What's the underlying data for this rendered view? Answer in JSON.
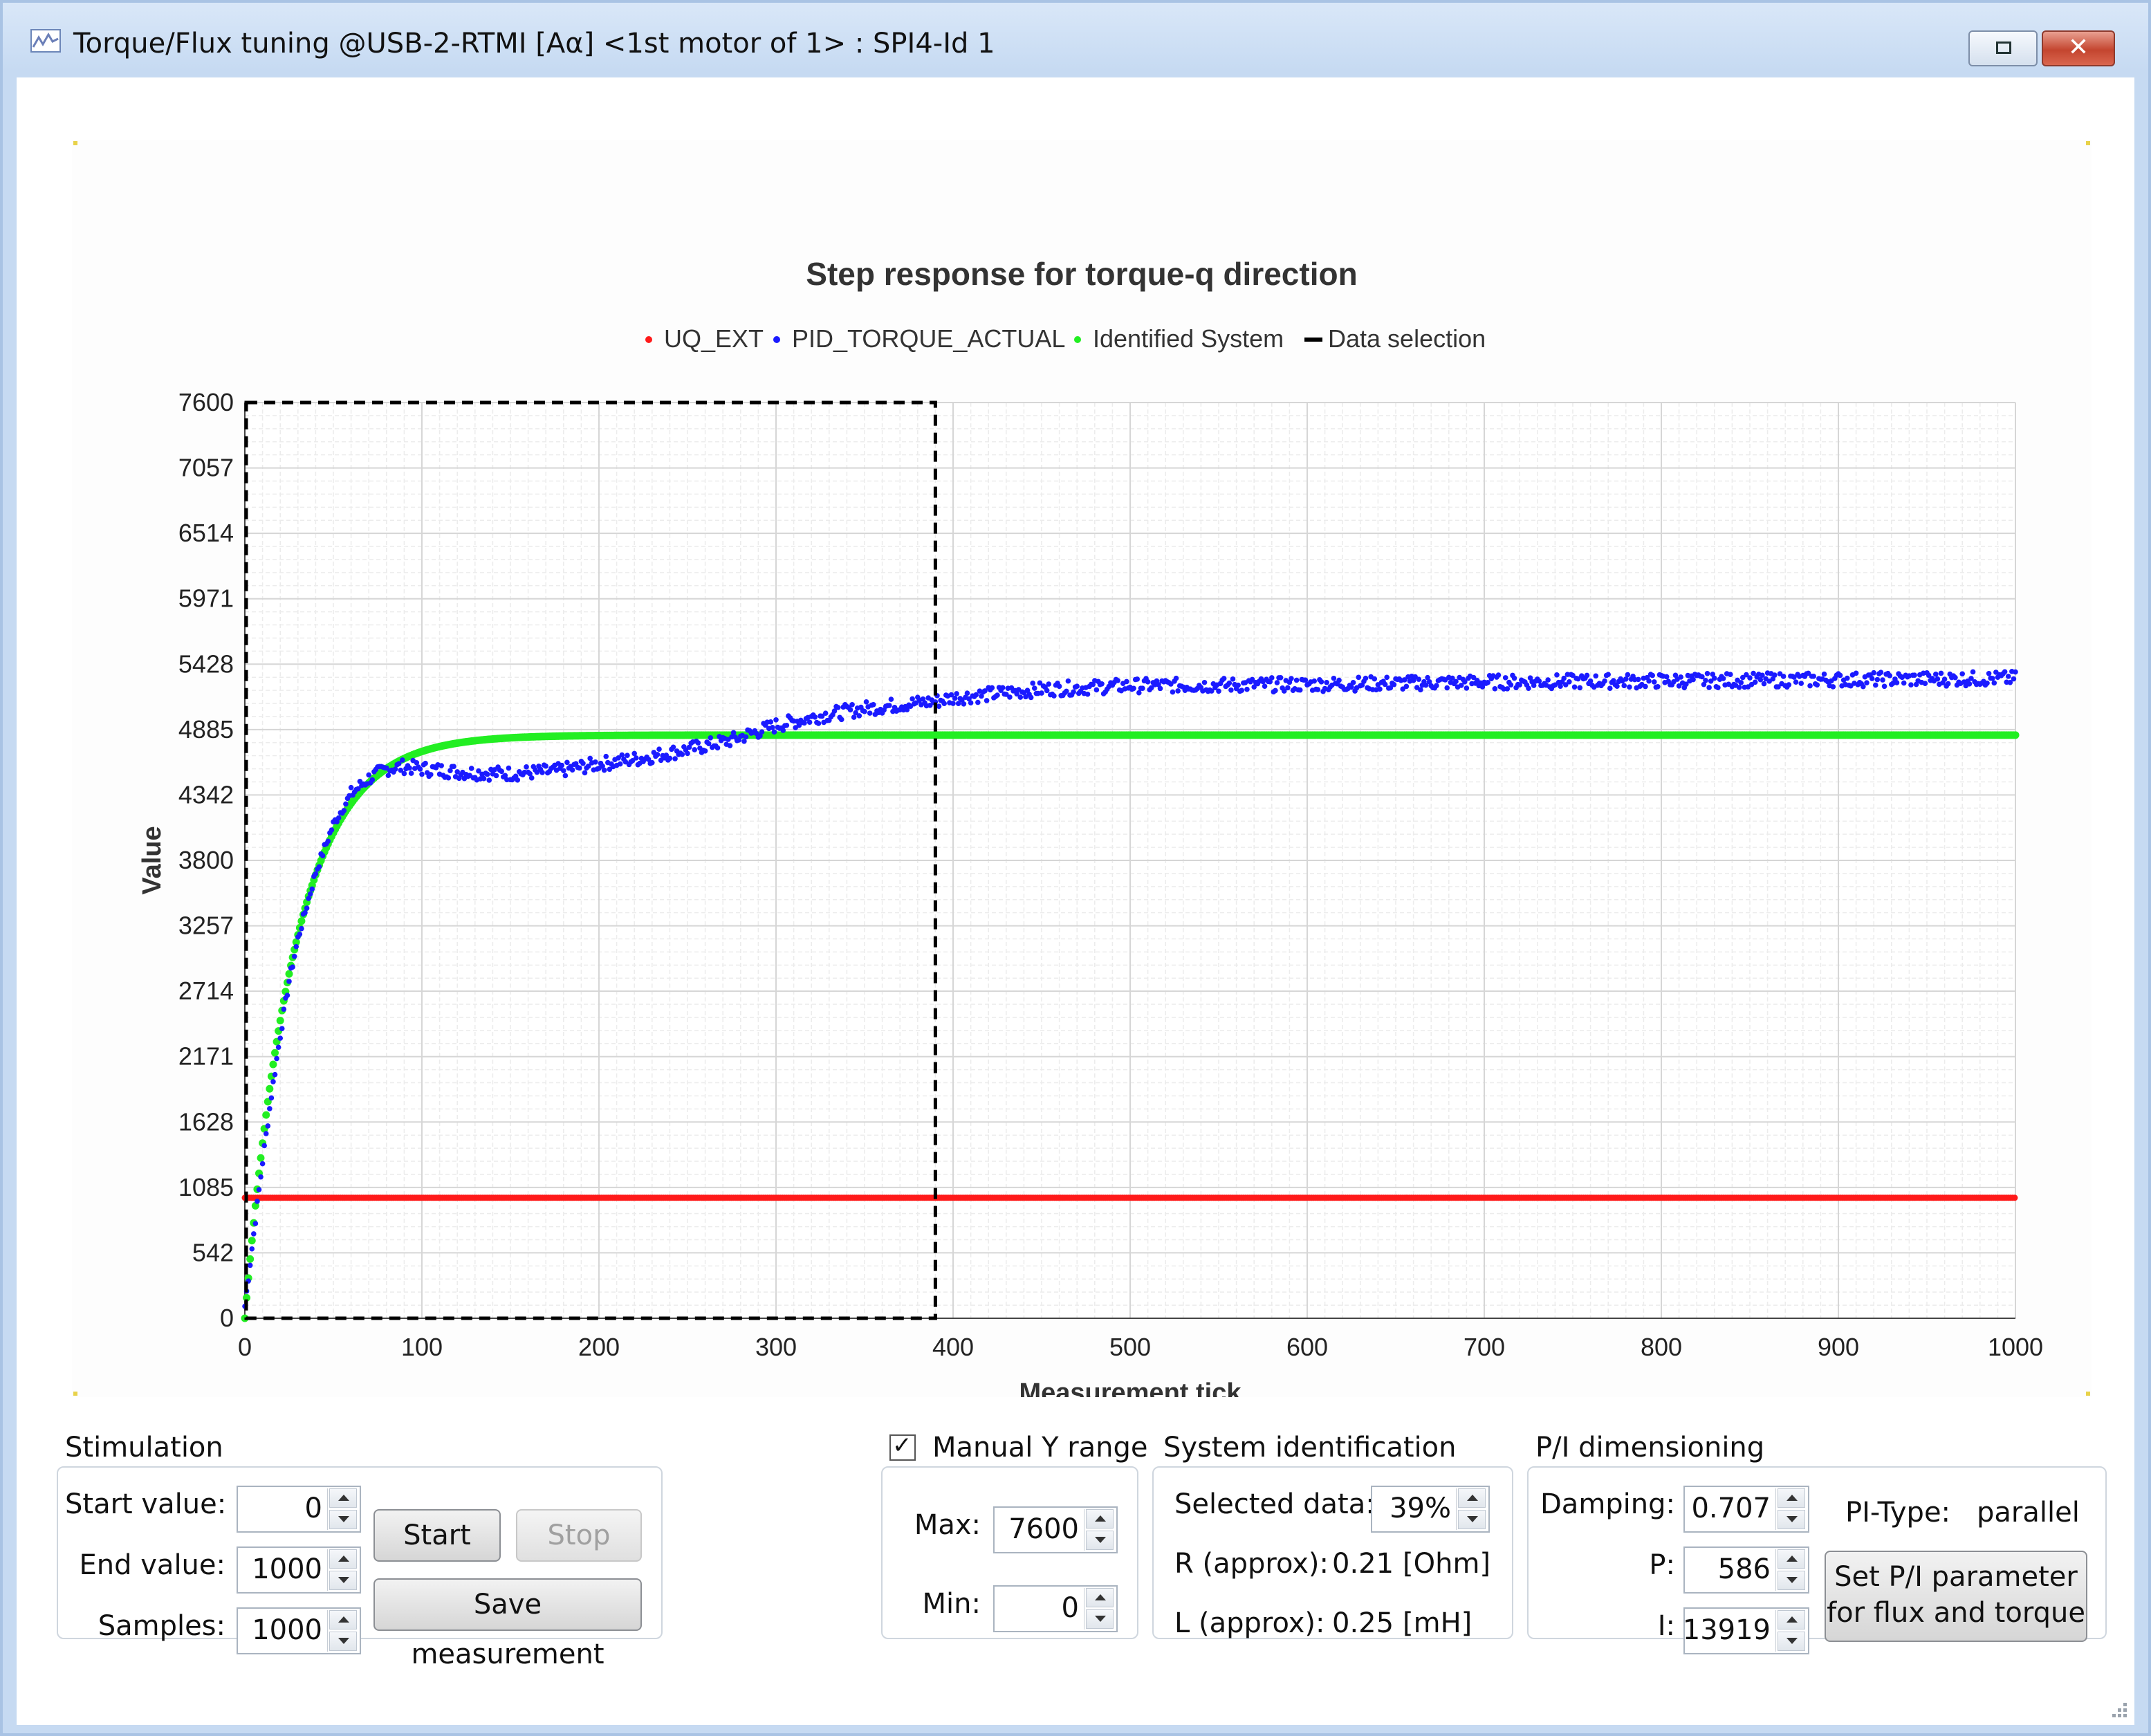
{
  "window": {
    "title": "Torque/Flux tuning @USB-2-RTMI [Aα] <1st motor of 1> : SPI4-Id 1",
    "close_glyph": "✕"
  },
  "chart_data": {
    "type": "scatter",
    "title": "Step response for torque-q direction",
    "xlabel": "Measurement tick",
    "ylabel": "Value",
    "xlim": [
      0,
      1000
    ],
    "ylim": [
      0,
      7600
    ],
    "x_ticks": [
      "0",
      "100",
      "200",
      "300",
      "400",
      "500",
      "600",
      "700",
      "800",
      "900",
      "1000"
    ],
    "y_ticks": [
      "0",
      "542",
      "1085",
      "1628",
      "2171",
      "2714",
      "3257",
      "3800",
      "4342",
      "4885",
      "5428",
      "5971",
      "6514",
      "7057",
      "7600"
    ],
    "grid": true,
    "legend_position": "top",
    "legend": [
      "UQ_EXT",
      "PID_TORQUE_ACTUAL",
      "Identified System",
      "Data selection"
    ],
    "series": [
      {
        "name": "UQ_EXT",
        "color": "#ff1a1a",
        "style": "points",
        "x_range": [
          0,
          1000
        ],
        "value": 1000
      },
      {
        "name": "PID_TORQUE_ACTUAL",
        "color": "#1a1aff",
        "style": "points",
        "x": [
          0,
          5,
          10,
          15,
          20,
          25,
          30,
          40,
          50,
          60,
          70,
          80,
          90,
          100,
          125,
          150,
          175,
          200,
          225,
          250,
          275,
          300,
          325,
          350,
          375,
          390,
          400,
          450,
          500,
          600,
          700,
          800,
          900,
          1000
        ],
        "y": [
          100,
          700,
          1300,
          1850,
          2350,
          2800,
          3150,
          3700,
          4100,
          4350,
          4480,
          4560,
          4580,
          4560,
          4530,
          4520,
          4540,
          4600,
          4650,
          4720,
          4800,
          4920,
          5000,
          5060,
          5100,
          5120,
          5150,
          5220,
          5250,
          5260,
          5280,
          5290,
          5300,
          5310
        ]
      },
      {
        "name": "Identified System",
        "color": "#22ee22",
        "style": "points",
        "model": {
          "final": 4840,
          "tau": 28
        }
      },
      {
        "name": "Data selection",
        "color": "#000000",
        "style": "dashed-rect",
        "x_range": [
          0,
          390
        ],
        "y_range": [
          0,
          7600
        ]
      }
    ]
  },
  "stimulation": {
    "label": "Stimulation",
    "start_label": "Start value:",
    "start_value": "0",
    "end_label": "End value:",
    "end_value": "1000",
    "samples_label": "Samples:",
    "samples_value": "1000",
    "start_button": "Start",
    "stop_button": "Stop",
    "save_button": "Save measurement"
  },
  "yrange": {
    "label": "Manual Y  range",
    "checked": "✓",
    "max_label": "Max:",
    "max_value": "7600",
    "min_label": "Min:",
    "min_value": "0"
  },
  "sysid": {
    "label": "System identification",
    "selected_label": "Selected data:",
    "selected_value": "39%",
    "r_label": "R (approx):",
    "r_value": "0.21",
    "r_unit": "[Ohm]",
    "l_label": "L (approx):",
    "l_value": "0.25",
    "l_unit": "[mH]"
  },
  "pi": {
    "label": "P/I dimensioning",
    "damping_label": "Damping:",
    "damping_value": "0.707",
    "p_label": "P:",
    "p_value": "586",
    "i_label": "I:",
    "i_value": "13919",
    "type_label": "PI-Type:",
    "type_value": "parallel",
    "set_button_line1": "Set P/I parameter",
    "set_button_line2": "for flux and torque"
  }
}
